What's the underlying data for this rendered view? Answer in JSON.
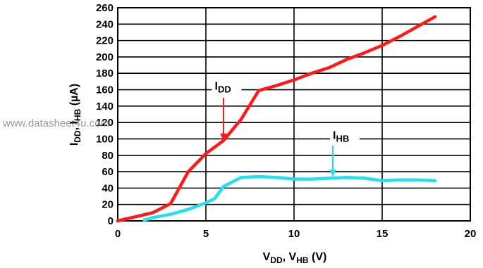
{
  "watermark": "www.datasheet4u.com",
  "chart_data": {
    "type": "line",
    "xlabel": {
      "main": "V",
      "sub1": "DD",
      "mid": ", V",
      "sub2": "HB",
      "unit": " (V)"
    },
    "ylabel": {
      "main": "I",
      "sub1": "DD",
      "mid": ", I",
      "sub2": "HB",
      "unit": " (µA)"
    },
    "xlim": [
      0,
      20
    ],
    "ylim": [
      0,
      260
    ],
    "x_ticks": [
      "0",
      "5",
      "10",
      "15",
      "20"
    ],
    "y_ticks": [
      "0",
      "20",
      "40",
      "60",
      "80",
      "100",
      "120",
      "140",
      "160",
      "180",
      "200",
      "220",
      "240",
      "260"
    ],
    "grid": true,
    "series": [
      {
        "name": "IDD",
        "label_main": "I",
        "label_sub": "DD",
        "color": "#ff1a1a",
        "x": [
          0,
          1,
          2,
          3,
          4,
          5,
          6,
          7,
          8,
          9,
          10,
          11,
          12,
          13,
          14,
          15,
          16,
          17,
          18
        ],
        "y": [
          0,
          5,
          10,
          21,
          60,
          82,
          98,
          124,
          159,
          165,
          172,
          180,
          187,
          197,
          205,
          214,
          225,
          237,
          249
        ]
      },
      {
        "name": "IHB",
        "label_main": "I",
        "label_sub": "HB",
        "color": "#22e0f0",
        "x": [
          1.5,
          2,
          3,
          4,
          5,
          5.5,
          6,
          7,
          8,
          9,
          10,
          11,
          12,
          13,
          14,
          15,
          16,
          17,
          18
        ],
        "y": [
          1,
          4,
          8,
          14,
          22,
          27,
          42,
          53,
          54,
          53,
          51,
          51,
          52,
          53,
          52,
          49,
          50,
          50,
          49
        ]
      }
    ],
    "annotations": [
      {
        "series": "IDD",
        "label_x": 5.5,
        "label_y": 160,
        "arrow_from": [
          6,
          150
        ],
        "arrow_to": [
          6,
          98
        ]
      },
      {
        "series": "IHB",
        "label_x": 12.2,
        "label_y": 100,
        "arrow_from": [
          12.2,
          92
        ],
        "arrow_to": [
          12.2,
          54
        ]
      }
    ]
  }
}
